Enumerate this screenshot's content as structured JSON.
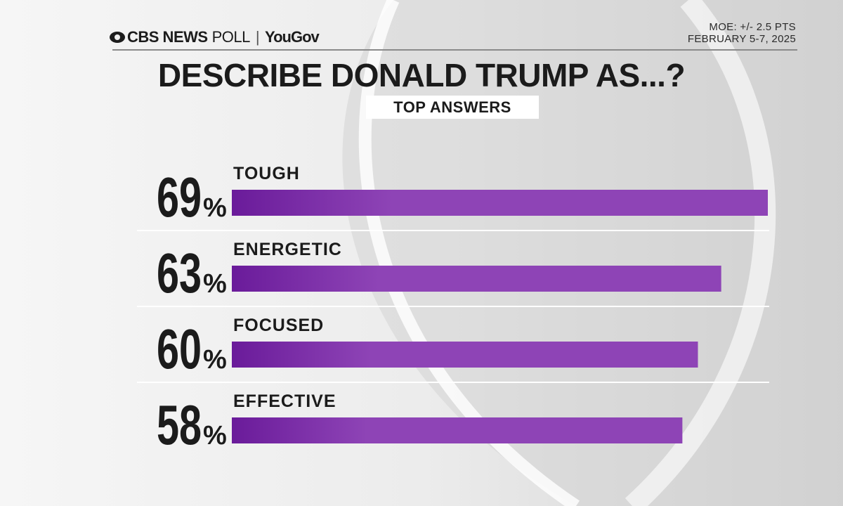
{
  "header": {
    "brand_cbs": "CBS NEWS",
    "brand_poll": "POLL",
    "brand_sep": "|",
    "brand_yougov": "YouGov",
    "moe": "MOE: +/- 2.5 PTS",
    "date": "FEBRUARY 5-7, 2025"
  },
  "colors": {
    "bar_start": "#6a1b9a",
    "bar_end": "#8e44b6",
    "text": "#1b1b1b"
  },
  "chart_data": {
    "type": "bar",
    "orientation": "horizontal",
    "title": "DESCRIBE DONALD TRUMP AS...?",
    "subtitle": "TOP ANSWERS",
    "categories": [
      "TOUGH",
      "ENERGETIC",
      "FOCUSED",
      "EFFECTIVE"
    ],
    "values": [
      69,
      63,
      60,
      58
    ],
    "value_suffix": "%",
    "xlim": [
      0,
      69
    ],
    "grid": false,
    "legend": "none"
  }
}
